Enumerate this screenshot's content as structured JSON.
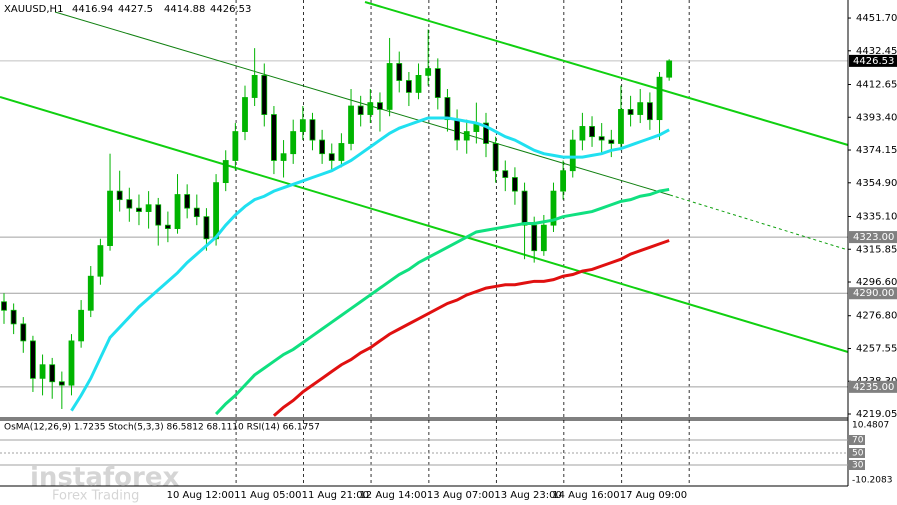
{
  "chart_data": {
    "type": "candlestick",
    "symbol": "XAUUSD,H1",
    "ylim": [
      4216.7,
      4462.3
    ],
    "yticks": [
      {
        "value": 4451.7,
        "label": "4451.70"
      },
      {
        "value": 4432.45,
        "label": "4432.45"
      },
      {
        "value": 4412.65,
        "label": "4412.65"
      },
      {
        "value": 4393.4,
        "label": "4393.40"
      },
      {
        "value": 4374.15,
        "label": "4374.15"
      },
      {
        "value": 4354.9,
        "label": "4354.90"
      },
      {
        "value": 4335.1,
        "label": "4335.10"
      },
      {
        "value": 4315.85,
        "label": "4315.85"
      },
      {
        "value": 4296.6,
        "label": "4296.60"
      },
      {
        "value": 4276.8,
        "label": "4276.80"
      },
      {
        "value": 4257.55,
        "label": "4257.55"
      },
      {
        "value": 4238.3,
        "label": "4238.30"
      },
      {
        "value": 4219.05,
        "label": "4219.05"
      }
    ],
    "up_color": "#00b400",
    "down_color": "#000000",
    "categories": [
      null,
      null,
      null,
      null,
      null,
      null,
      null,
      null,
      null,
      null,
      null,
      null,
      null,
      null,
      null,
      null,
      null,
      null,
      null,
      null,
      null,
      null,
      "10 Aug 12:00",
      null,
      null,
      null,
      null,
      null,
      null,
      "11 Aug 05:00",
      null,
      null,
      null,
      null,
      null,
      null,
      "11 Aug 21:00",
      null,
      null,
      null,
      null,
      null,
      "12 Aug 14:00",
      null,
      null,
      null,
      null,
      null,
      null,
      "13 Aug 07:00",
      null,
      null,
      null,
      null,
      null,
      null,
      "13 Aug 23:00",
      null,
      null,
      null,
      null,
      null,
      "14 Aug 16:00",
      null,
      null,
      null,
      null,
      null,
      null,
      "17 Aug 09:00"
    ],
    "ohlc": [
      [
        4285,
        4290,
        4272,
        4280
      ],
      [
        4280,
        4284,
        4266,
        4272
      ],
      [
        4272,
        4276,
        4255,
        4262
      ],
      [
        4262,
        4265,
        4232,
        4240
      ],
      [
        4240,
        4254,
        4230,
        4248
      ],
      [
        4248,
        4252,
        4228,
        4238
      ],
      [
        4238,
        4244,
        4222,
        4236
      ],
      [
        4236,
        4266,
        4230,
        4262
      ],
      [
        4262,
        4286,
        4258,
        4280
      ],
      [
        4280,
        4306,
        4276,
        4300
      ],
      [
        4300,
        4322,
        4295,
        4318
      ],
      [
        4318,
        4372,
        4315,
        4350
      ],
      [
        4350,
        4362,
        4338,
        4345
      ],
      [
        4345,
        4352,
        4332,
        4340
      ],
      [
        4340,
        4348,
        4330,
        4338
      ],
      [
        4338,
        4350,
        4328,
        4342
      ],
      [
        4342,
        4346,
        4318,
        4330
      ],
      [
        4330,
        4338,
        4320,
        4328
      ],
      [
        4328,
        4360,
        4325,
        4348
      ],
      [
        4348,
        4354,
        4334,
        4340
      ],
      [
        4340,
        4348,
        4330,
        4335
      ],
      [
        4335,
        4340,
        4315,
        4322
      ],
      [
        4322,
        4360,
        4318,
        4355
      ],
      [
        4355,
        4374,
        4350,
        4368
      ],
      [
        4368,
        4390,
        4362,
        4385
      ],
      [
        4385,
        4412,
        4380,
        4405
      ],
      [
        4405,
        4434,
        4400,
        4418
      ],
      [
        4418,
        4425,
        4388,
        4395
      ],
      [
        4395,
        4400,
        4360,
        4368
      ],
      [
        4368,
        4380,
        4358,
        4372
      ],
      [
        4372,
        4392,
        4366,
        4385
      ],
      [
        4385,
        4400,
        4380,
        4392
      ],
      [
        4392,
        4396,
        4374,
        4380
      ],
      [
        4380,
        4386,
        4366,
        4372
      ],
      [
        4372,
        4378,
        4362,
        4368
      ],
      [
        4368,
        4384,
        4364,
        4378
      ],
      [
        4378,
        4410,
        4374,
        4400
      ],
      [
        4400,
        4406,
        4388,
        4395
      ],
      [
        4395,
        4410,
        4390,
        4402
      ],
      [
        4402,
        4408,
        4385,
        4398
      ],
      [
        4398,
        4440,
        4394,
        4425
      ],
      [
        4425,
        4432,
        4408,
        4415
      ],
      [
        4415,
        4420,
        4400,
        4408
      ],
      [
        4408,
        4425,
        4404,
        4418
      ],
      [
        4418,
        4445,
        4412,
        4422
      ],
      [
        4422,
        4428,
        4398,
        4405
      ],
      [
        4405,
        4410,
        4385,
        4392
      ],
      [
        4392,
        4398,
        4374,
        4380
      ],
      [
        4380,
        4392,
        4372,
        4385
      ],
      [
        4385,
        4402,
        4378,
        4390
      ],
      [
        4390,
        4396,
        4370,
        4378
      ],
      [
        4378,
        4382,
        4355,
        4362
      ],
      [
        4362,
        4368,
        4350,
        4358
      ],
      [
        4358,
        4364,
        4342,
        4350
      ],
      [
        4350,
        4355,
        4310,
        4330
      ],
      [
        4330,
        4335,
        4308,
        4315
      ],
      [
        4315,
        4336,
        4312,
        4330
      ],
      [
        4330,
        4355,
        4326,
        4350
      ],
      [
        4350,
        4368,
        4345,
        4362
      ],
      [
        4362,
        4386,
        4358,
        4380
      ],
      [
        4380,
        4396,
        4374,
        4388
      ],
      [
        4388,
        4394,
        4376,
        4382
      ],
      [
        4382,
        4390,
        4372,
        4380
      ],
      [
        4380,
        4386,
        4370,
        4378
      ],
      [
        4378,
        4412,
        4374,
        4398
      ],
      [
        4398,
        4406,
        4388,
        4395
      ],
      [
        4395,
        4410,
        4390,
        4402
      ],
      [
        4402,
        4408,
        4386,
        4392
      ],
      [
        4392,
        4420,
        4380,
        4416.94
      ],
      [
        4416.94,
        4427.5,
        4414.88,
        4426.53
      ]
    ],
    "series": [
      {
        "color": "#20e0f0",
        "values": [
          null,
          null,
          null,
          null,
          null,
          null,
          null,
          4221,
          4230,
          4240,
          4252,
          4264,
          4270,
          4276,
          4282,
          4287,
          4292,
          4297,
          4302,
          4308,
          4313,
          4318,
          4323,
          4330,
          4336,
          4341,
          4345,
          4347,
          4350,
          4352,
          4354,
          4356,
          4358,
          4360,
          4362,
          4365,
          4368,
          4372,
          4376,
          4380,
          4384,
          4387,
          4389,
          4391,
          4393,
          4393,
          4393,
          4392,
          4391,
          4390,
          4388,
          4385,
          4382,
          4380,
          4377,
          4374,
          4372,
          4371,
          4370,
          4370,
          4370,
          4371,
          4372,
          4374,
          4375,
          4377,
          4379,
          4381,
          4383,
          4386
        ]
      },
      {
        "color": "#10e080",
        "values": [
          null,
          null,
          null,
          null,
          null,
          null,
          null,
          null,
          null,
          null,
          null,
          null,
          null,
          null,
          null,
          null,
          null,
          null,
          null,
          null,
          null,
          null,
          4219,
          4225,
          4230,
          4236,
          4242,
          4246,
          4250,
          4254,
          4257,
          4261,
          4265,
          4269,
          4273,
          4277,
          4281,
          4285,
          4289,
          4293,
          4297,
          4301,
          4304,
          4308,
          4311,
          4314,
          4317,
          4320,
          4323,
          4326,
          4327,
          4328,
          4329,
          4330,
          4331,
          4331,
          4332,
          4333,
          4335,
          4336,
          4337,
          4338,
          4340,
          4342,
          4344,
          4345,
          4347,
          4348,
          4350,
          4351
        ]
      },
      {
        "color": "#e01010",
        "values": [
          null,
          null,
          null,
          null,
          null,
          null,
          null,
          null,
          null,
          null,
          null,
          null,
          null,
          null,
          null,
          null,
          null,
          null,
          null,
          null,
          null,
          null,
          null,
          null,
          null,
          null,
          null,
          null,
          4218,
          4223,
          4227,
          4232,
          4236,
          4240,
          4244,
          4248,
          4251,
          4255,
          4258,
          4262,
          4266,
          4269,
          4272,
          4275,
          4278,
          4281,
          4284,
          4286,
          4289,
          4291,
          4293,
          4294,
          4295,
          4295,
          4296,
          4297,
          4297,
          4298,
          4300,
          4301,
          4303,
          4304,
          4306,
          4308,
          4310,
          4313,
          4315,
          4317,
          4319,
          4321
        ]
      }
    ],
    "levels": [
      {
        "value": 4323,
        "label": "4323.00"
      },
      {
        "value": 4290,
        "label": "4290.00"
      },
      {
        "value": 4235,
        "label": "4235.00"
      }
    ],
    "indicator": {
      "title": "OsMA(12,26,9) 1.7235 Stoch(5,3,3) 86.5812 68.1110 RSI(14) 66.1757",
      "labels": [
        10.4807,
        70,
        50,
        30,
        -10.2083
      ]
    },
    "watermark": {
      "brand": "instaforex",
      "tagline": "Forex Trading"
    }
  }
}
